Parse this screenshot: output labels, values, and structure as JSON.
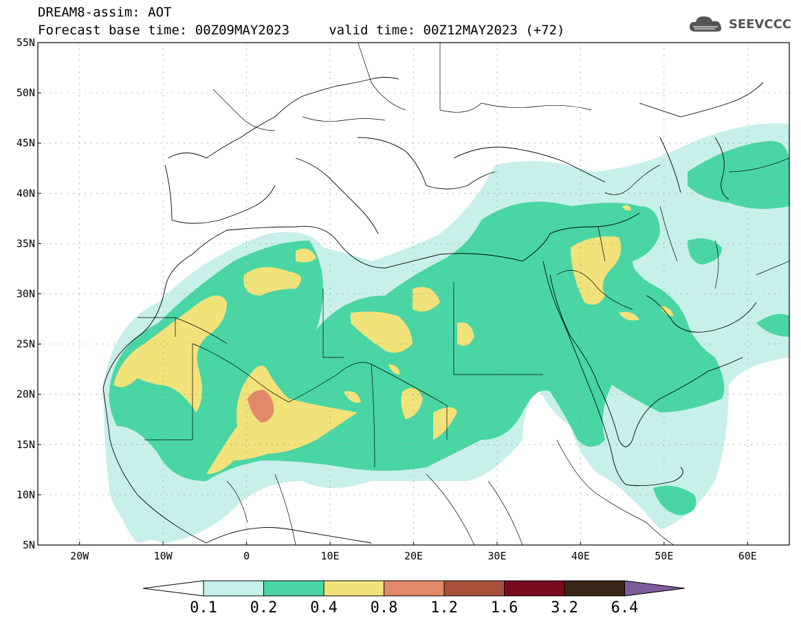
{
  "header": {
    "title_line1": "DREAM8-assim: AOT",
    "title_line2": "Forecast base time: 00Z09MAY2023     valid time: 00Z12MAY2023 (+72)",
    "logo_text": "SEEVCCC"
  },
  "map": {
    "lon_range": [
      -25,
      65
    ],
    "lat_range": [
      5,
      55
    ],
    "lat_ticks": [
      "5N",
      "10N",
      "15N",
      "20N",
      "25N",
      "30N",
      "35N",
      "40N",
      "45N",
      "50N",
      "55N"
    ],
    "lon_ticks": [
      "20W",
      "10W",
      "0",
      "10E",
      "20E",
      "30E",
      "40E",
      "50E",
      "60E"
    ],
    "grid": "dotted",
    "regions": [
      {
        "level": "0.1-0.2",
        "color": "#c8f0ea"
      },
      {
        "level": "0.2-0.4",
        "color": "#49d6a4"
      },
      {
        "level": "0.4-0.8",
        "color": "#f2e27a"
      },
      {
        "level": "0.8-1.2",
        "color": "#e4886a"
      }
    ]
  },
  "colorbar": {
    "labels": [
      "0.1",
      "0.2",
      "0.4",
      "0.8",
      "1.2",
      "1.6",
      "3.2",
      "6.4"
    ],
    "colors": [
      "#c8f0ea",
      "#49d6a4",
      "#f2e27a",
      "#e4886a",
      "#a8503c",
      "#7a0a1c",
      "#3a2616",
      "#7d5c9c"
    ]
  }
}
